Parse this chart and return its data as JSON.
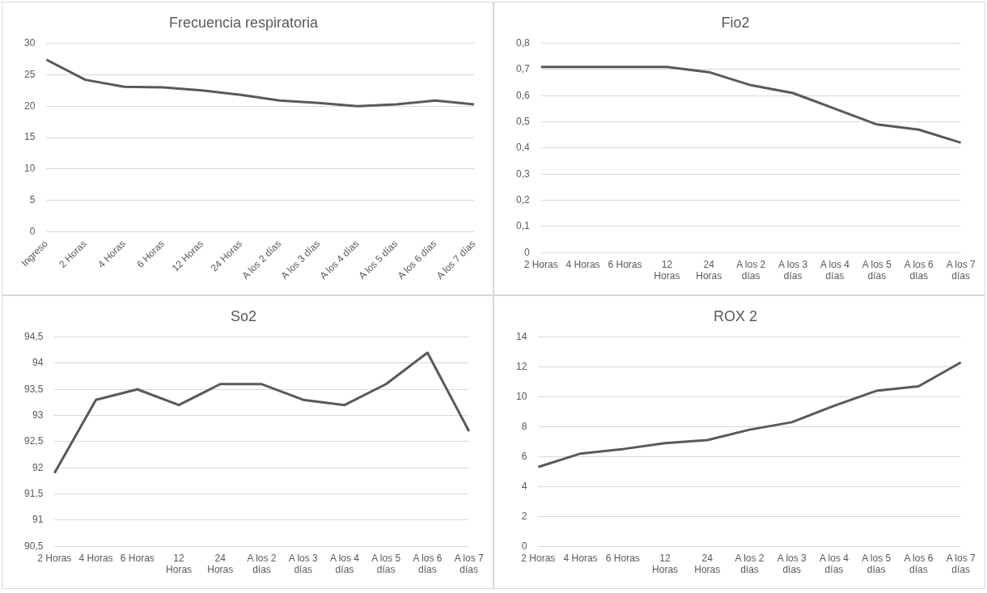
{
  "chart_data": [
    {
      "type": "line",
      "title": "Frecuencia respiratoria",
      "categories": [
        "Ingreso",
        "2 Horas",
        "4 Horas",
        "6 Horas",
        "12 Horas",
        "24 Horas",
        "A los 2 días",
        "A los 3 días",
        "A los 4 días",
        "A los 5 días",
        "A los 6 días",
        "A los 7 días"
      ],
      "values": [
        27.4,
        24.2,
        23.1,
        23.0,
        22.5,
        21.8,
        20.9,
        20.5,
        20.0,
        20.3,
        20.9,
        20.3
      ],
      "color": "#595959",
      "ylim": [
        0,
        30
      ],
      "yticks": [
        0,
        5,
        10,
        15,
        20,
        25,
        30
      ],
      "grid": "y",
      "legend": false,
      "marker": "none",
      "line_style": "solid"
    },
    {
      "type": "line",
      "title": "Fio2",
      "categories": [
        "2 Horas",
        "4 Horas",
        "6 Horas",
        "12 Horas",
        "24 Horas",
        "A los 2 días",
        "A los 3 días",
        "A los 4 días",
        "A los 5 días",
        "A los 6 días",
        "A los 7 días"
      ],
      "values": [
        0.71,
        0.71,
        0.71,
        0.71,
        0.69,
        0.64,
        0.61,
        0.55,
        0.49,
        0.47,
        0.42
      ],
      "color": "#595959",
      "ylim": [
        0,
        0.8
      ],
      "yticks": [
        0,
        {
          "value": 0.1,
          "label": "0,1"
        },
        {
          "value": 0.2,
          "label": "0,2"
        },
        {
          "value": 0.3,
          "label": "0,3"
        },
        {
          "value": 0.4,
          "label": "0,4"
        },
        {
          "value": 0.5,
          "label": "0,5"
        },
        {
          "value": 0.6,
          "label": "0,6"
        },
        {
          "value": 0.7,
          "label": "0,7"
        },
        {
          "value": 0.8,
          "label": "0,8"
        }
      ],
      "grid": "y",
      "legend": false,
      "marker": "none",
      "line_style": "solid"
    },
    {
      "type": "line",
      "title": "So2",
      "categories": [
        "2 Horas",
        "4 Horas",
        "6 Horas",
        "12 Horas",
        "24 Horas",
        "A los 2 días",
        "A los 3 días",
        "A los 4 días",
        "A los 5 días",
        "A los 6 días",
        "A los 7 días"
      ],
      "values": [
        91.9,
        93.3,
        93.5,
        93.2,
        93.6,
        93.6,
        93.3,
        93.2,
        93.6,
        94.2,
        92.7
      ],
      "color": "#595959",
      "ylim": [
        90.5,
        94.5
      ],
      "yticks": [
        {
          "value": 90.5,
          "label": "90,5"
        },
        91,
        {
          "value": 91.5,
          "label": "91,5"
        },
        92,
        {
          "value": 92.5,
          "label": "92,5"
        },
        93,
        {
          "value": 93.5,
          "label": "93,5"
        },
        94,
        {
          "value": 94.5,
          "label": "94,5"
        }
      ],
      "grid": "y",
      "legend": false,
      "marker": "none",
      "line_style": "solid"
    },
    {
      "type": "line",
      "title": "ROX 2",
      "categories": [
        "2 Horas",
        "4 Horas",
        "6 Horas",
        "12 Horas",
        "24 Horas",
        "A los 2 días",
        "A los 3 días",
        "A los 4 días",
        "A los 5 días",
        "A los 6 días",
        "A los 7 días"
      ],
      "values": [
        5.3,
        6.2,
        6.5,
        6.9,
        7.1,
        7.8,
        8.3,
        9.4,
        10.4,
        10.7,
        12.3
      ],
      "color": "#595959",
      "ylim": [
        0,
        14
      ],
      "yticks": [
        0,
        2,
        4,
        6,
        8,
        10,
        12,
        14
      ],
      "grid": "y",
      "legend": false,
      "marker": "none",
      "line_style": "solid"
    }
  ]
}
